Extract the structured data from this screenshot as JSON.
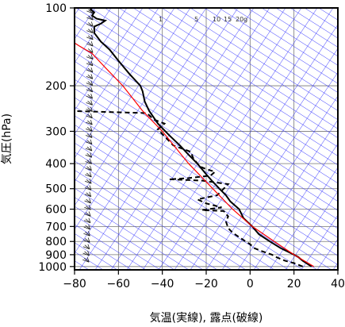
{
  "chart_data": {
    "type": "line",
    "title": "",
    "xlabel": "気温(実線), 露点(破線)",
    "ylabel": "気圧(hPa)",
    "xlim": [
      -80,
      40
    ],
    "ylim": [
      1030,
      100
    ],
    "y_scale": "log",
    "x_ticks": [
      -80,
      -60,
      -40,
      -20,
      0,
      20,
      40
    ],
    "x_tick_labels": [
      "−80",
      "−60",
      "−40",
      "−20",
      "0",
      "20",
      "40"
    ],
    "y_ticks": [
      100,
      200,
      300,
      400,
      500,
      600,
      700,
      800,
      900,
      1000
    ],
    "y_tick_labels": [
      "100",
      "200",
      "300",
      "400",
      "500",
      "600",
      "700",
      "800",
      "900",
      "1000"
    ],
    "mixing_ratio_labels": [
      "1",
      "5",
      "10",
      "15",
      "20g"
    ],
    "grid": true,
    "series": [
      {
        "style": "solid",
        "color": "#000000",
        "points": [
          [
            28,
            1000
          ],
          [
            24,
            950
          ],
          [
            22,
            920
          ],
          [
            20,
            900
          ],
          [
            14,
            850
          ],
          [
            9,
            800
          ],
          [
            4,
            750
          ],
          [
            1,
            700
          ],
          [
            -3,
            650
          ],
          [
            -5,
            600
          ],
          [
            -9,
            560
          ],
          [
            -11,
            530
          ],
          [
            -14,
            500
          ],
          [
            -17,
            470
          ],
          [
            -20,
            440
          ],
          [
            -24,
            400
          ],
          [
            -28,
            370
          ],
          [
            -32,
            340
          ],
          [
            -37,
            310
          ],
          [
            -42,
            280
          ],
          [
            -46,
            250
          ],
          [
            -48,
            230
          ],
          [
            -49,
            210
          ],
          [
            -50,
            200
          ],
          [
            -55,
            180
          ],
          [
            -60,
            160
          ],
          [
            -64,
            145
          ],
          [
            -68,
            135
          ],
          [
            -71,
            125
          ],
          [
            -71,
            118
          ],
          [
            -68,
            115
          ],
          [
            -66,
            112
          ],
          [
            -70,
            110
          ],
          [
            -72,
            107
          ],
          [
            -71,
            104
          ],
          [
            -73,
            101
          ]
        ]
      },
      {
        "style": "dashed",
        "color": "#000000",
        "points": [
          [
            24,
            1000
          ],
          [
            20,
            970
          ],
          [
            16,
            950
          ],
          [
            12,
            920
          ],
          [
            10,
            900
          ],
          [
            5,
            870
          ],
          [
            2,
            850
          ],
          [
            0,
            820
          ],
          [
            -2,
            800
          ],
          [
            -5,
            770
          ],
          [
            -8,
            740
          ],
          [
            -10,
            710
          ],
          [
            -11,
            670
          ],
          [
            -10,
            640
          ],
          [
            -12,
            610
          ],
          [
            -22,
            605
          ],
          [
            -13,
            590
          ],
          [
            -20,
            570
          ],
          [
            -24,
            550
          ],
          [
            -15,
            530
          ],
          [
            -12,
            500
          ],
          [
            -10,
            480
          ],
          [
            -22,
            465
          ],
          [
            -37,
            460
          ],
          [
            -28,
            455
          ],
          [
            -18,
            445
          ],
          [
            -16,
            430
          ],
          [
            -20,
            420
          ],
          [
            -23,
            410
          ],
          [
            -26,
            380
          ],
          [
            -27,
            360
          ],
          [
            -35,
            340
          ],
          [
            -38,
            320
          ],
          [
            -42,
            295
          ],
          [
            -39,
            280
          ],
          [
            -44,
            270
          ],
          [
            -47,
            255
          ],
          [
            -83,
            250
          ]
        ]
      },
      {
        "style": "solid",
        "color": "#ff0000",
        "points": [
          [
            29,
            1000
          ],
          [
            20,
            900
          ],
          [
            11,
            800
          ],
          [
            1,
            700
          ],
          [
            -8,
            600
          ],
          [
            -17,
            500
          ],
          [
            -28,
            400
          ],
          [
            -40,
            300
          ],
          [
            -49,
            250
          ],
          [
            -58,
            200
          ],
          [
            -66,
            170
          ],
          [
            -72,
            150
          ],
          [
            -78,
            140
          ],
          [
            -84,
            130
          ]
        ]
      }
    ]
  }
}
